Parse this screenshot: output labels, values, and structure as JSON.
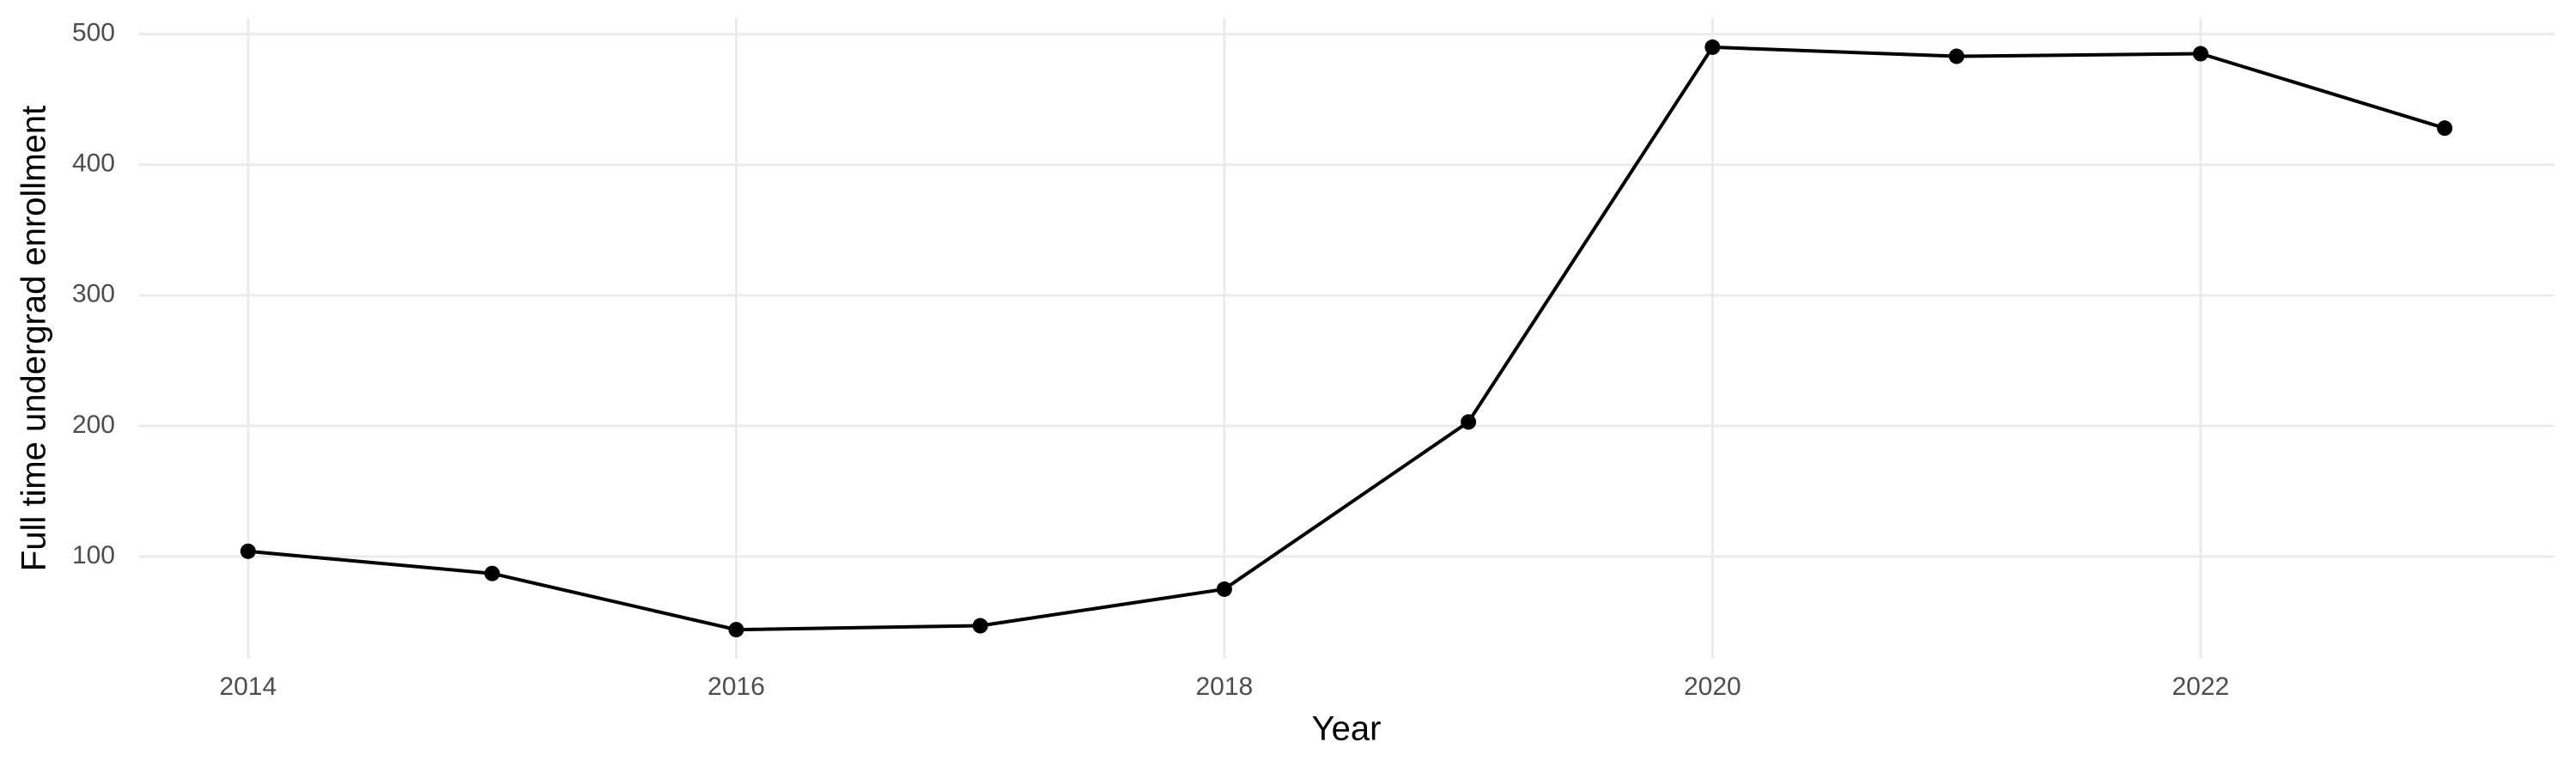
{
  "chart_data": {
    "type": "line",
    "x_label": "Year",
    "y_label": "Full time undergrad enrollment",
    "x": [
      2014,
      2015,
      2016,
      2017,
      2018,
      2019,
      2020,
      2021,
      2022,
      2023
    ],
    "series": [
      {
        "color": "#000000",
        "values": [
          104,
          87,
          44,
          47,
          75,
          203,
          490,
          483,
          485,
          428
        ]
      }
    ],
    "xlim": [
      2013.55,
      2023.45
    ],
    "xticks": [
      2014,
      2016,
      2018,
      2020,
      2022
    ],
    "ylim": [
      21.7,
      512.3
    ],
    "yticks": [
      100,
      200,
      300,
      400,
      500
    ],
    "grid": true
  }
}
